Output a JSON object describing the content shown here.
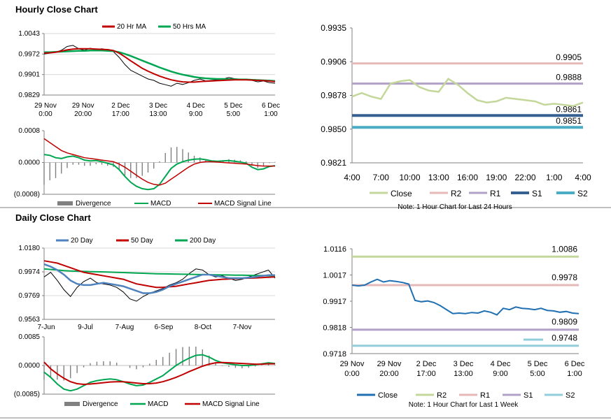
{
  "sections": {
    "hourly_title": "Hourly Close Chart",
    "daily_title": "Daily Close Chart"
  },
  "colors": {
    "close_gray": "#000000",
    "ma20": "#c00000",
    "ma50": "#00a651",
    "ma200": "#00a651",
    "day20": "#4f81bd",
    "macd": "#00a651",
    "signal": "#c00000",
    "divergence": "#808080",
    "r2": "#e6b8b7",
    "r1": "#b1a0c7",
    "s1": "#366092",
    "s2": "#4bacc6",
    "close_light": "#c4d79b",
    "close_blue": "#1f6fb2",
    "r2_green": "#c4d79b"
  },
  "chart_data": [
    {
      "id": "hourly_price",
      "type": "line",
      "title": "Hourly Close Chart",
      "yticks": [
        "1.0043",
        "0.9972",
        "0.9901",
        "0.9829"
      ],
      "ylim": [
        0.9829,
        1.0043
      ],
      "xticks": [
        [
          "29 Nov",
          "0:00"
        ],
        [
          "29 Nov",
          "20:00"
        ],
        [
          "2 Dec",
          "17:00"
        ],
        [
          "3 Dec",
          "13:00"
        ],
        [
          "4 Dec",
          "9:00"
        ],
        [
          "5 Dec",
          "5:00"
        ],
        [
          "6 Dec",
          "1:00"
        ]
      ],
      "legend": [
        "20 Hr MA",
        "50 Hrs MA"
      ],
      "series": [
        {
          "name": "Close",
          "values": [
            0.9972,
            0.9975,
            0.9978,
            0.9985,
            0.9998,
            1.0002,
            0.999,
            0.9985,
            0.9992,
            0.9988,
            0.999,
            0.9986,
            0.998,
            0.996,
            0.9935,
            0.9915,
            0.9905,
            0.9895,
            0.9885,
            0.988,
            0.987,
            0.9865,
            0.986,
            0.987,
            0.9866,
            0.9872,
            0.988,
            0.9885,
            0.9878,
            0.988,
            0.9882,
            0.9885,
            0.989,
            0.9886,
            0.9884,
            0.9885,
            0.988,
            0.9875,
            0.9878,
            0.9872,
            0.987
          ]
        },
        {
          "name": "20 Hr MA",
          "values": [
            0.9975,
            0.9976,
            0.9978,
            0.9982,
            0.9986,
            0.9989,
            0.999,
            0.999,
            0.999,
            0.9989,
            0.9988,
            0.9987,
            0.9984,
            0.9975,
            0.9962,
            0.9948,
            0.9935,
            0.9922,
            0.9912,
            0.9903,
            0.9895,
            0.9888,
            0.9882,
            0.9878,
            0.9875,
            0.9874,
            0.9874,
            0.9876,
            0.9877,
            0.9878,
            0.9879,
            0.988,
            0.9881,
            0.9882,
            0.9882,
            0.9882,
            0.9881,
            0.988,
            0.9879,
            0.9878,
            0.9876
          ]
        },
        {
          "name": "50 Hrs MA",
          "values": [
            0.9978,
            0.9978,
            0.9979,
            0.998,
            0.9981,
            0.9982,
            0.9983,
            0.9983,
            0.9984,
            0.9984,
            0.9984,
            0.9983,
            0.9982,
            0.9978,
            0.9972,
            0.9965,
            0.9957,
            0.9949,
            0.9941,
            0.9933,
            0.9925,
            0.9918,
            0.9911,
            0.9905,
            0.99,
            0.9896,
            0.9892,
            0.9889,
            0.9887,
            0.9886,
            0.9885,
            0.9885,
            0.9884,
            0.9884,
            0.9883,
            0.9883,
            0.9882,
            0.9881,
            0.988,
            0.9879,
            0.9878
          ]
        }
      ]
    },
    {
      "id": "hourly_macd",
      "type": "line",
      "yticks": [
        "0.0008",
        "0.0000",
        "(0.0008)"
      ],
      "ylim": [
        -0.0008,
        0.0008
      ],
      "legend": [
        "Divergence",
        "MACD",
        "MACD Signal Line"
      ],
      "series": [
        {
          "name": "MACD",
          "values": [
            0.0002,
            0.00018,
            0.00012,
            0.0001,
            0.00014,
            0.00016,
            0.00012,
            6e-05,
            4e-05,
            5e-05,
            2e-05,
            -2e-05,
            -6e-05,
            -0.00018,
            -0.00035,
            -0.0005,
            -0.0006,
            -0.00066,
            -0.00068,
            -0.00066,
            -0.00055,
            -0.00035,
            -0.00015,
            -4e-05,
            2e-05,
            6e-05,
            8e-05,
            9e-05,
            7e-05,
            4e-05,
            3e-05,
            4e-05,
            5e-05,
            3e-05,
            1e-05,
            -2e-05,
            -0.00012,
            -0.00018,
            -0.00016,
            -0.0001,
            -8e-05
          ]
        },
        {
          "name": "MACD Signal Line",
          "values": [
            0.0006,
            0.0005,
            0.0004,
            0.0003,
            0.00024,
            0.0002,
            0.00016,
            0.00012,
            0.0001,
            8e-05,
            6e-05,
            4e-05,
            2e-05,
            -4e-05,
            -0.00012,
            -0.00022,
            -0.00032,
            -0.00042,
            -0.0005,
            -0.00055,
            -0.00057,
            -0.00052,
            -0.00042,
            -0.00032,
            -0.00022,
            -0.00012,
            -4e-05,
            0.0,
            2e-05,
            2e-05,
            1e-05,
            0.0,
            -1e-05,
            -2e-05,
            -3e-05,
            -4e-05,
            -6e-05,
            -8e-05,
            -9e-05,
            -9e-05,
            -9e-05
          ]
        }
      ]
    },
    {
      "id": "hourly_24h",
      "type": "line",
      "note": "Note: 1 Hour Chart for Last 24 Hours",
      "yticks": [
        "0.9935",
        "0.9906",
        "0.9878",
        "0.9850",
        "0.9821"
      ],
      "ylim": [
        0.9821,
        0.9935
      ],
      "xticks": [
        "4:00",
        "7:00",
        "10:00",
        "13:00",
        "16:00",
        "19:00",
        "22:00",
        "1:00",
        "4:00"
      ],
      "legend": [
        "Close",
        "R2",
        "R1",
        "S1",
        "S2"
      ],
      "levels": {
        "R2": 0.9905,
        "R1": 0.9888,
        "S1": 0.9861,
        "S2": 0.9851
      },
      "level_labels": {
        "R2": "0.9905",
        "R1": "0.9888",
        "S1": "0.9861",
        "S2": "0.9851"
      },
      "series": [
        {
          "name": "Close",
          "values": [
            0.9877,
            0.988,
            0.9877,
            0.9875,
            0.9888,
            0.989,
            0.9891,
            0.9885,
            0.9882,
            0.9881,
            0.9892,
            0.9887,
            0.988,
            0.9874,
            0.9872,
            0.9873,
            0.9876,
            0.9875,
            0.9874,
            0.9873,
            0.987,
            0.9871,
            0.987,
            0.9869,
            0.9872
          ]
        }
      ]
    },
    {
      "id": "daily_price",
      "type": "line",
      "title": "Daily Close Chart",
      "yticks": [
        "1.0180",
        "0.9974",
        "0.9769",
        "0.9563"
      ],
      "ylim": [
        0.9563,
        1.018
      ],
      "xticks": [
        "7-Jun",
        "9-Jul",
        "7-Aug",
        "6-Sep",
        "8-Oct",
        "7-Nov"
      ],
      "legend": [
        "20 Day",
        "50 Day",
        "200 Day"
      ],
      "series": [
        {
          "name": "Close",
          "values": [
            0.993,
            0.997,
            0.99,
            0.982,
            0.976,
            0.984,
            0.989,
            0.992,
            0.988,
            0.987,
            0.986,
            0.984,
            0.98,
            0.974,
            0.972,
            0.976,
            0.979,
            0.981,
            0.983,
            0.986,
            0.988,
            0.991,
            0.996,
            1.0,
            0.999,
            0.995,
            0.993,
            0.994,
            0.992,
            0.99,
            0.991,
            0.993,
            0.995,
            0.997,
            0.999,
            0.992
          ]
        },
        {
          "name": "20 Day",
          "values": [
            1.004,
            1.002,
            0.999,
            0.995,
            0.99,
            0.987,
            0.986,
            0.986,
            0.987,
            0.988,
            0.987,
            0.986,
            0.985,
            0.983,
            0.981,
            0.979,
            0.979,
            0.98,
            0.982,
            0.985,
            0.987,
            0.989,
            0.991,
            0.993,
            0.995,
            0.995,
            0.994,
            0.993,
            0.992,
            0.992,
            0.992,
            0.9925,
            0.993,
            0.994,
            0.9945,
            0.9945
          ]
        },
        {
          "name": "50 Day",
          "values": [
            1.007,
            1.006,
            1.005,
            1.003,
            1.001,
            0.999,
            0.997,
            0.996,
            0.995,
            0.994,
            0.993,
            0.992,
            0.991,
            0.989,
            0.987,
            0.986,
            0.985,
            0.984,
            0.984,
            0.9845,
            0.985,
            0.986,
            0.987,
            0.988,
            0.989,
            0.99,
            0.9905,
            0.991,
            0.9912,
            0.9915,
            0.9918,
            0.992,
            0.9922,
            0.9925,
            0.9928,
            0.993
          ]
        },
        {
          "name": "200 Day",
          "values": [
            1.0,
            0.9995,
            0.999,
            0.9985,
            0.9982,
            0.998,
            0.9978,
            0.9976,
            0.9975,
            0.9974,
            0.9972,
            0.997,
            0.9968,
            0.9966,
            0.9964,
            0.9962,
            0.996,
            0.9958,
            0.9957,
            0.9956,
            0.9955,
            0.9954,
            0.9953,
            0.9952,
            0.9951,
            0.995,
            0.9949,
            0.9948,
            0.9947,
            0.9946,
            0.9945,
            0.9944,
            0.9943,
            0.9942,
            0.9941,
            0.994
          ]
        }
      ]
    },
    {
      "id": "daily_macd",
      "type": "line",
      "yticks": [
        "0.0085",
        "0.0000",
        "(0.0085)"
      ],
      "ylim": [
        -0.0085,
        0.0085
      ],
      "legend": [
        "Divergence",
        "MACD",
        "MACD Signal Line"
      ],
      "series": [
        {
          "name": "MACD",
          "values": [
            -0.002,
            -0.0035,
            -0.0055,
            -0.007,
            -0.0075,
            -0.007,
            -0.006,
            -0.005,
            -0.0045,
            -0.0042,
            -0.004,
            -0.0042,
            -0.0048,
            -0.0055,
            -0.006,
            -0.0058,
            -0.005,
            -0.004,
            -0.003,
            -0.0015,
            0.0,
            0.0012,
            0.0022,
            0.003,
            0.0032,
            0.0025,
            0.0015,
            0.0008,
            0.0005,
            0.0002,
            0.0,
            0.0,
            0.0002,
            0.0005,
            0.0008,
            0.0006
          ]
        },
        {
          "name": "MACD Signal Line",
          "values": [
            0.001,
            -0.001,
            -0.0025,
            -0.0038,
            -0.0048,
            -0.0054,
            -0.0056,
            -0.0055,
            -0.0053,
            -0.0051,
            -0.0049,
            -0.0048,
            -0.0048,
            -0.005,
            -0.0052,
            -0.0054,
            -0.0054,
            -0.0052,
            -0.0048,
            -0.0042,
            -0.0035,
            -0.0027,
            -0.0018,
            -0.001,
            -0.0002,
            0.0004,
            0.0008,
            0.0009,
            0.0008,
            0.0007,
            0.0006,
            0.0005,
            0.0004,
            0.0004,
            0.0005,
            0.0005
          ]
        }
      ]
    },
    {
      "id": "weekly_hourly",
      "type": "line",
      "note": "Note: 1 Hour Chart for Last 1 Week",
      "yticks": [
        "1.0116",
        "1.0017",
        "0.9917",
        "0.9818",
        "0.9718"
      ],
      "ylim": [
        0.9718,
        1.0116
      ],
      "xticks": [
        [
          "29 Nov",
          "0:00"
        ],
        [
          "29 Nov",
          "20:00"
        ],
        [
          "2 Dec",
          "17:00"
        ],
        [
          "3 Dec",
          "13:00"
        ],
        [
          "4 Dec",
          "9:00"
        ],
        [
          "5 Dec",
          "5:00"
        ],
        [
          "6 Dec",
          "1:00"
        ]
      ],
      "legend": [
        "Close",
        "R2",
        "R1",
        "S1",
        "S2"
      ],
      "levels": {
        "R2": 1.0086,
        "R1": 0.9978,
        "S1": 0.9809,
        "S2": 0.9748
      },
      "level_labels": {
        "R2": "1.0086",
        "R1": "0.9978",
        "S1": "0.9809",
        "S2": "0.9748"
      },
      "series": [
        {
          "name": "Close",
          "values": [
            0.9978,
            0.9975,
            0.9978,
            0.999,
            1.0,
            0.999,
            0.9995,
            0.9992,
            0.9988,
            0.9982,
            0.992,
            0.9915,
            0.9918,
            0.9912,
            0.99,
            0.9885,
            0.987,
            0.9872,
            0.987,
            0.9874,
            0.9872,
            0.988,
            0.9875,
            0.9865,
            0.989,
            0.9885,
            0.9895,
            0.989,
            0.9888,
            0.9885,
            0.989,
            0.9882,
            0.988,
            0.9875,
            0.9878,
            0.9872,
            0.987
          ]
        }
      ]
    }
  ]
}
